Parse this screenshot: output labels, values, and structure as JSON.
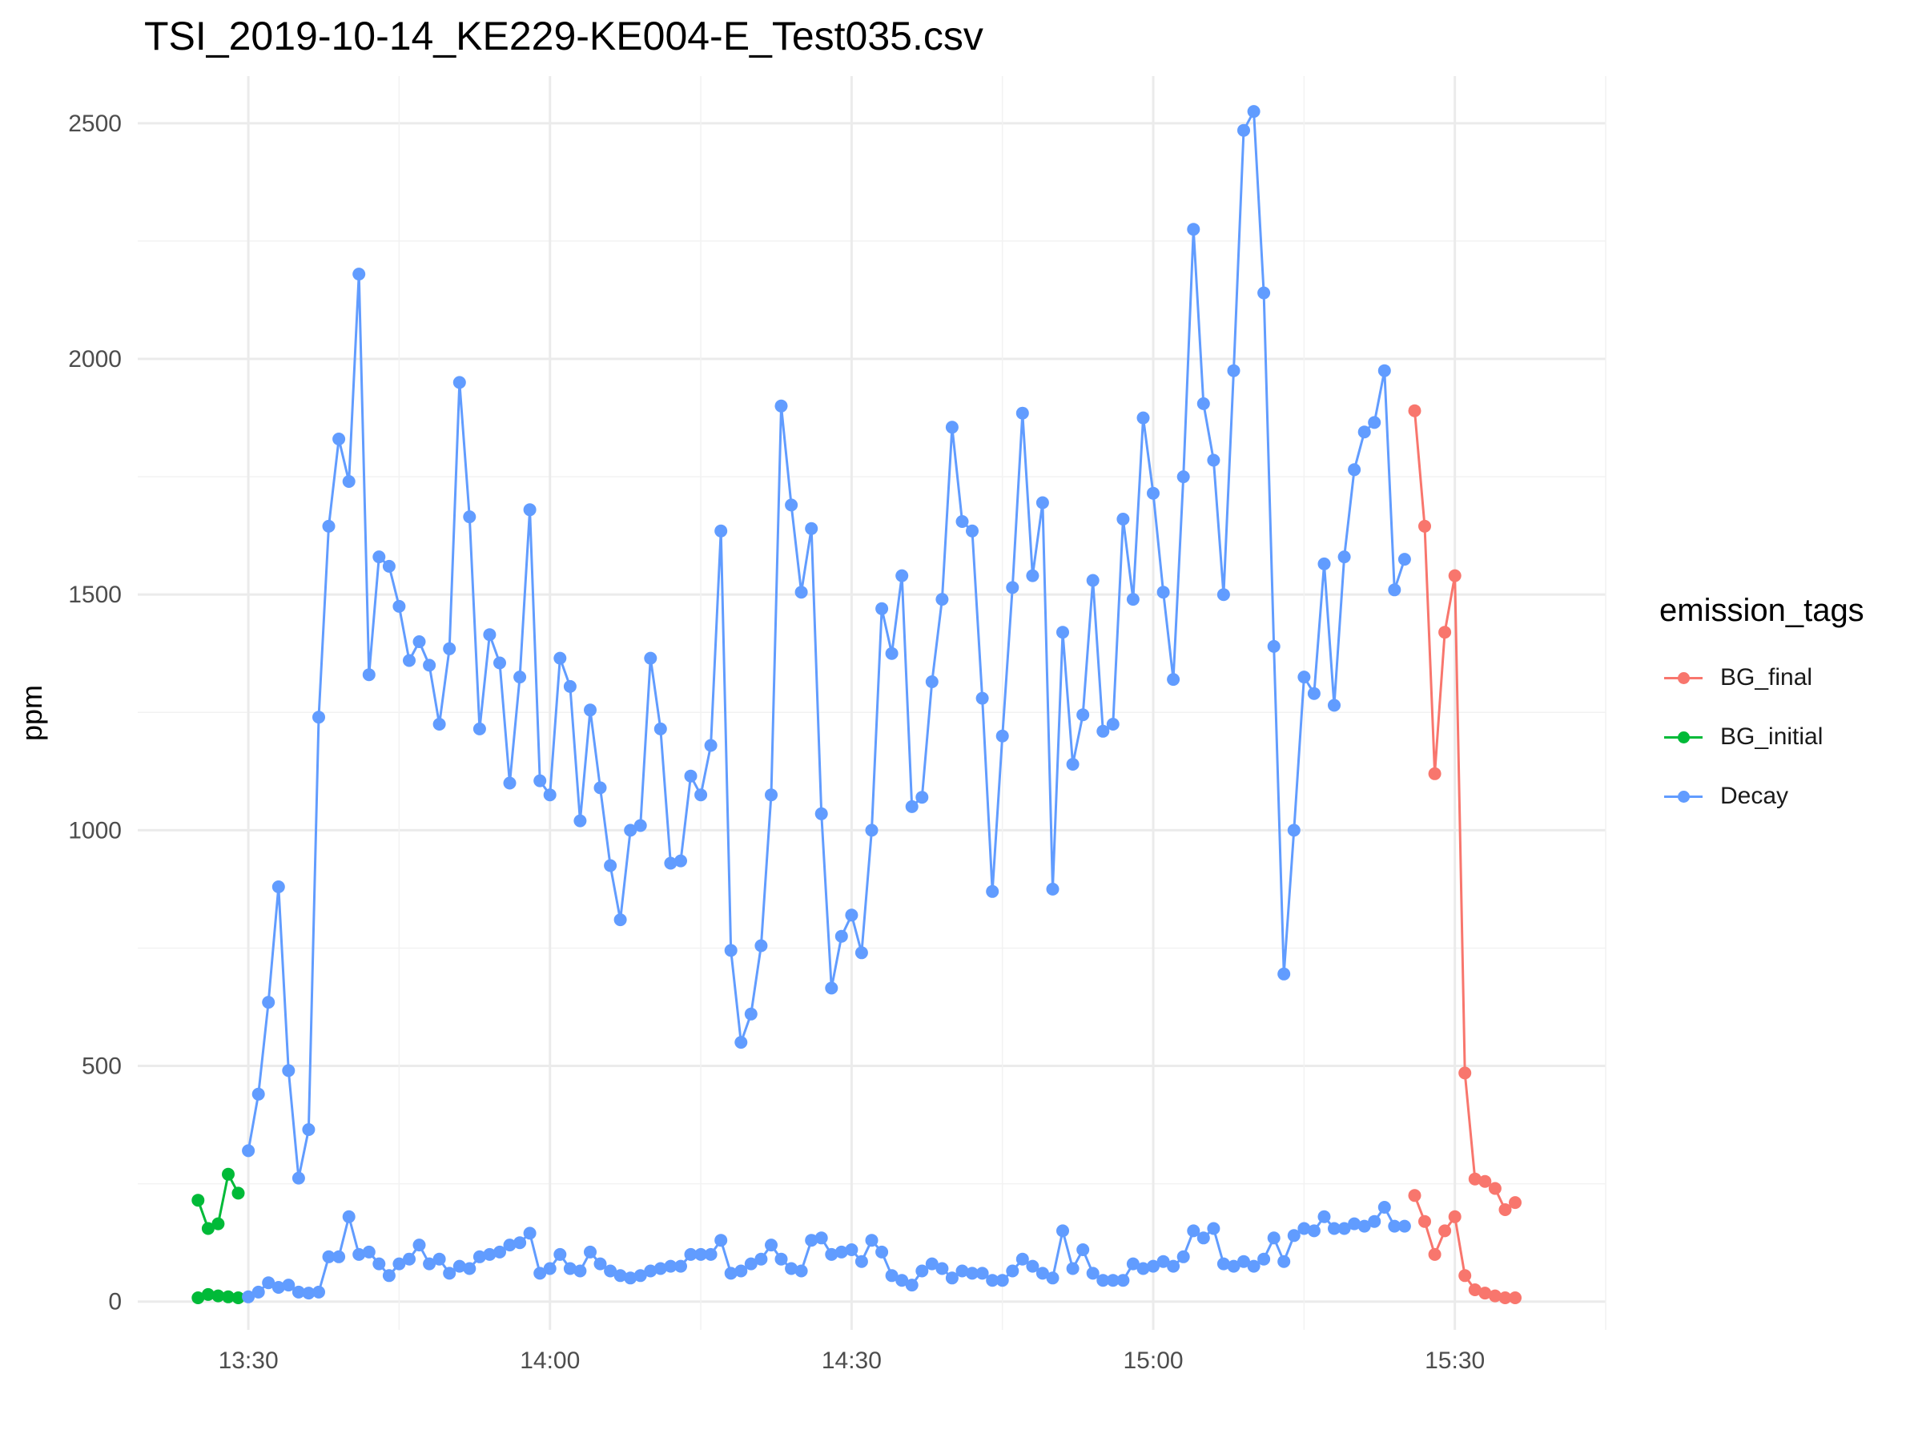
{
  "title": "TSI_2019-10-14_KE229-KE004-E_Test035.csv",
  "legend": {
    "title": "emission_tags",
    "items": [
      {
        "label": "BG_final",
        "color": "#F8766D"
      },
      {
        "label": "BG_initial",
        "color": "#00BA38"
      },
      {
        "label": "Decay",
        "color": "#619CFF"
      }
    ]
  },
  "chart_data": {
    "type": "line",
    "title": "TSI_2019-10-14_KE229-KE004-E_Test035.csv",
    "xlabel": "",
    "ylabel": "ppm",
    "x_unit": "clock time (hh:mm)",
    "xlim": [
      "13:19",
      "15:45"
    ],
    "ylim": [
      -60,
      2600
    ],
    "x_ticks": [
      "13:30",
      "14:00",
      "14:30",
      "15:00",
      "15:30"
    ],
    "y_ticks": [
      0,
      500,
      1000,
      1500,
      2000,
      2500
    ],
    "grid": true,
    "legend_position": "right",
    "markers": "points",
    "series": [
      {
        "name": "BG_initial",
        "color": "#00BA38",
        "lines": [
          {
            "x": [
              "13:25",
              "13:26",
              "13:27",
              "13:28",
              "13:29"
            ],
            "y": [
              215,
              155,
              165,
              270,
              230
            ]
          },
          {
            "x": [
              "13:25",
              "13:26",
              "13:27",
              "13:28",
              "13:29"
            ],
            "y": [
              8,
              15,
              12,
              10,
              8
            ]
          }
        ]
      },
      {
        "name": "Decay",
        "color": "#619CFF",
        "lines": [
          {
            "x": [
              "13:30",
              "13:31",
              "13:32",
              "13:33",
              "13:34",
              "13:35",
              "13:36",
              "13:37",
              "13:38",
              "13:39",
              "13:40",
              "13:41",
              "13:42",
              "13:43",
              "13:44",
              "13:45",
              "13:46",
              "13:47",
              "13:48",
              "13:49",
              "13:50",
              "13:51",
              "13:52",
              "13:53",
              "13:54",
              "13:55",
              "13:56",
              "13:57",
              "13:58",
              "13:59",
              "14:00",
              "14:01",
              "14:02",
              "14:03",
              "14:04",
              "14:05",
              "14:06",
              "14:07",
              "14:08",
              "14:09",
              "14:10",
              "14:11",
              "14:12",
              "14:13",
              "14:14",
              "14:15",
              "14:16",
              "14:17",
              "14:18",
              "14:19",
              "14:20",
              "14:21",
              "14:22",
              "14:23",
              "14:24",
              "14:25",
              "14:26",
              "14:27",
              "14:28",
              "14:29",
              "14:30",
              "14:31",
              "14:32",
              "14:33",
              "14:34",
              "14:35",
              "14:36",
              "14:37",
              "14:38",
              "14:39",
              "14:40",
              "14:41",
              "14:42",
              "14:43",
              "14:44",
              "14:45",
              "14:46",
              "14:47",
              "14:48",
              "14:49",
              "14:50",
              "14:51",
              "14:52",
              "14:53",
              "14:54",
              "14:55",
              "14:56",
              "14:57",
              "14:58",
              "14:59",
              "15:00",
              "15:01",
              "15:02",
              "15:03",
              "15:04",
              "15:05",
              "15:06",
              "15:07",
              "15:08",
              "15:09",
              "15:10",
              "15:11",
              "15:12",
              "15:13",
              "15:14",
              "15:15",
              "15:16",
              "15:17",
              "15:18",
              "15:19",
              "15:20",
              "15:21",
              "15:22",
              "15:23",
              "15:24",
              "15:25"
            ],
            "y": [
              320,
              440,
              635,
              880,
              490,
              262,
              365,
              1240,
              1645,
              1830,
              1740,
              2180,
              1330,
              1580,
              1560,
              1475,
              1360,
              1400,
              1350,
              1225,
              1385,
              1950,
              1665,
              1215,
              1415,
              1355,
              1100,
              1325,
              1680,
              1105,
              1075,
              1365,
              1305,
              1020,
              1255,
              1090,
              925,
              810,
              1000,
              1010,
              1365,
              1215,
              930,
              935,
              1115,
              1075,
              1180,
              1635,
              745,
              550,
              610,
              755,
              1075,
              1900,
              1690,
              1505,
              1640,
              1035,
              665,
              775,
              820,
              740,
              1000,
              1470,
              1375,
              1540,
              1050,
              1070,
              1315,
              1490,
              1855,
              1655,
              1635,
              1280,
              870,
              1200,
              1515,
              1885,
              1540,
              1695,
              875,
              1420,
              1140,
              1245,
              1530,
              1210,
              1225,
              1660,
              1490,
              1875,
              1715,
              1505,
              1320,
              1750,
              2275,
              1905,
              1785,
              1500,
              1975,
              2485,
              2525,
              2140,
              1390,
              695,
              1000,
              1325,
              1290,
              1565,
              1265,
              1580,
              1765,
              1845,
              1865,
              1975,
              1510,
              1575
            ]
          },
          {
            "x": [
              "13:30",
              "13:31",
              "13:32",
              "13:33",
              "13:34",
              "13:35",
              "13:36",
              "13:37",
              "13:38",
              "13:39",
              "13:40",
              "13:41",
              "13:42",
              "13:43",
              "13:44",
              "13:45",
              "13:46",
              "13:47",
              "13:48",
              "13:49",
              "13:50",
              "13:51",
              "13:52",
              "13:53",
              "13:54",
              "13:55",
              "13:56",
              "13:57",
              "13:58",
              "13:59",
              "14:00",
              "14:01",
              "14:02",
              "14:03",
              "14:04",
              "14:05",
              "14:06",
              "14:07",
              "14:08",
              "14:09",
              "14:10",
              "14:11",
              "14:12",
              "14:13",
              "14:14",
              "14:15",
              "14:16",
              "14:17",
              "14:18",
              "14:19",
              "14:20",
              "14:21",
              "14:22",
              "14:23",
              "14:24",
              "14:25",
              "14:26",
              "14:27",
              "14:28",
              "14:29",
              "14:30",
              "14:31",
              "14:32",
              "14:33",
              "14:34",
              "14:35",
              "14:36",
              "14:37",
              "14:38",
              "14:39",
              "14:40",
              "14:41",
              "14:42",
              "14:43",
              "14:44",
              "14:45",
              "14:46",
              "14:47",
              "14:48",
              "14:49",
              "14:50",
              "14:51",
              "14:52",
              "14:53",
              "14:54",
              "14:55",
              "14:56",
              "14:57",
              "14:58",
              "14:59",
              "15:00",
              "15:01",
              "15:02",
              "15:03",
              "15:04",
              "15:05",
              "15:06",
              "15:07",
              "15:08",
              "15:09",
              "15:10",
              "15:11",
              "15:12",
              "15:13",
              "15:14",
              "15:15",
              "15:16",
              "15:17",
              "15:18",
              "15:19",
              "15:20",
              "15:21",
              "15:22",
              "15:23",
              "15:24",
              "15:25"
            ],
            "y": [
              10,
              20,
              40,
              30,
              35,
              20,
              18,
              20,
              95,
              95,
              180,
              100,
              105,
              80,
              55,
              80,
              90,
              120,
              80,
              90,
              60,
              75,
              70,
              95,
              100,
              105,
              120,
              125,
              145,
              60,
              70,
              100,
              70,
              65,
              105,
              80,
              65,
              55,
              50,
              55,
              65,
              70,
              75,
              75,
              100,
              100,
              100,
              130,
              60,
              65,
              80,
              90,
              120,
              90,
              70,
              65,
              130,
              135,
              100,
              105,
              110,
              85,
              130,
              105,
              55,
              45,
              35,
              65,
              80,
              70,
              50,
              65,
              60,
              60,
              45,
              45,
              65,
              90,
              75,
              60,
              50,
              150,
              70,
              110,
              60,
              45,
              45,
              45,
              80,
              70,
              75,
              85,
              75,
              95,
              150,
              135,
              155,
              80,
              75,
              85,
              75,
              90,
              135,
              85,
              140,
              155,
              150,
              180,
              155,
              155,
              165,
              160,
              170,
              200,
              160,
              160
            ]
          }
        ]
      },
      {
        "name": "BG_final",
        "color": "#F8766D",
        "lines": [
          {
            "x": [
              "15:26",
              "15:27",
              "15:28",
              "15:29",
              "15:30",
              "15:31",
              "15:32",
              "15:33",
              "15:34",
              "15:35",
              "15:36"
            ],
            "y": [
              1890,
              1645,
              1120,
              1420,
              1540,
              485,
              260,
              255,
              240,
              195,
              210
            ]
          },
          {
            "x": [
              "15:26",
              "15:27",
              "15:28",
              "15:29",
              "15:30",
              "15:31",
              "15:32",
              "15:33",
              "15:34",
              "15:35",
              "15:36"
            ],
            "y": [
              225,
              170,
              100,
              150,
              180,
              55,
              25,
              18,
              12,
              8,
              8
            ]
          }
        ]
      }
    ]
  }
}
